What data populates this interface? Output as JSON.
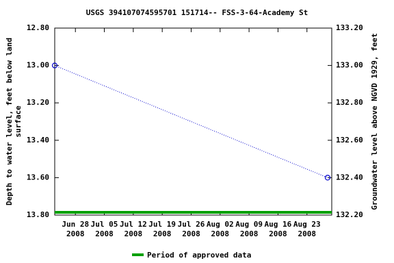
{
  "chart_data": {
    "type": "line",
    "title": "USGS 394107074595701 151714-- FSS-3-64-Academy St",
    "y_label": "Depth to water level, feet below land surface",
    "y2_label": "Groundwater level above NGVD 1929, feet",
    "x": [
      "2008-06-23",
      "2008-08-28"
    ],
    "series": [
      {
        "color": "#0000cc",
        "values": [
          13.0,
          13.6
        ]
      }
    ],
    "xlim": [
      "2008-06-23",
      "2008-08-29"
    ],
    "xticks": [
      {
        "value": "2008-06-28",
        "label": "Jun 28 2008"
      },
      {
        "value": "2008-07-05",
        "label": "Jul 05 2008"
      },
      {
        "value": "2008-07-12",
        "label": "Jul 12 2008"
      },
      {
        "value": "2008-07-19",
        "label": "Jul 19 2008"
      },
      {
        "value": "2008-07-26",
        "label": "Jul 26 2008"
      },
      {
        "value": "2008-08-02",
        "label": "Aug 02 2008"
      },
      {
        "value": "2008-08-09",
        "label": "Aug 09 2008"
      },
      {
        "value": "2008-08-16",
        "label": "Aug 16 2008"
      },
      {
        "value": "2008-08-23",
        "label": "Aug 23 2008"
      }
    ],
    "ylim": [
      12.8,
      13.8
    ],
    "y_inverted": true,
    "yticks": [
      {
        "value": 12.8,
        "label": "12.80"
      },
      {
        "value": 13.0,
        "label": "13.00"
      },
      {
        "value": 13.2,
        "label": "13.20"
      },
      {
        "value": 13.4,
        "label": "13.40"
      },
      {
        "value": 13.6,
        "label": "13.60"
      },
      {
        "value": 13.8,
        "label": "13.80"
      }
    ],
    "y2lim": [
      132.2,
      133.2
    ],
    "y2ticks": [
      {
        "value": 133.2,
        "label": "133.20"
      },
      {
        "value": 133.0,
        "label": "133.00"
      },
      {
        "value": 132.8,
        "label": "132.80"
      },
      {
        "value": 132.6,
        "label": "132.60"
      },
      {
        "value": 132.4,
        "label": "132.40"
      },
      {
        "value": 132.2,
        "label": "132.20"
      }
    ],
    "periods": [
      {
        "name": "Period of approved data",
        "color": "#00a000",
        "start": "2008-06-23",
        "end": "2008-08-29"
      }
    ]
  }
}
